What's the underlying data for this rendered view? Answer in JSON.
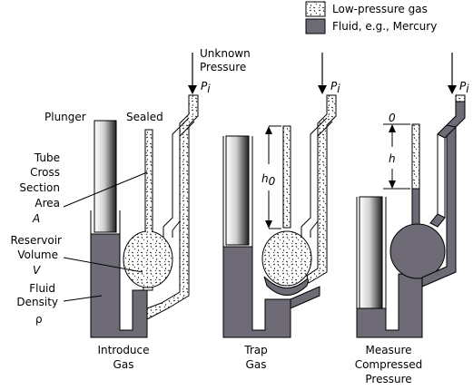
{
  "legend": {
    "gas_label": "Low-pressure gas",
    "fluid_label": "Fluid, e.g., Mercury"
  },
  "colors": {
    "fluid": "#6e6a76",
    "outline": "#000000",
    "gas_speckle": "#000000"
  },
  "labels": {
    "unknown": "Unknown",
    "pressure": "Pressure",
    "p_letter": "P",
    "p_sub": "i",
    "plunger": "Plunger",
    "sealed": "Sealed",
    "tube": "Tube",
    "cross": "Cross",
    "section": "Section",
    "area": "Area",
    "area_symbol": "A",
    "reservoir": "Reservoir",
    "volume": "Volume",
    "volume_symbol": "V",
    "fluid": "Fluid",
    "density": "Density",
    "density_symbol": "ρ",
    "h0_letter": "h",
    "h0_sub": "0",
    "h_letter": "h",
    "zero": "0"
  },
  "stages": [
    {
      "line1": "Introduce",
      "line2": "Gas"
    },
    {
      "line1": "Trap",
      "line2": "Gas"
    },
    {
      "line1": "Measure",
      "line2": "Compressed",
      "line3": "Pressure"
    }
  ]
}
